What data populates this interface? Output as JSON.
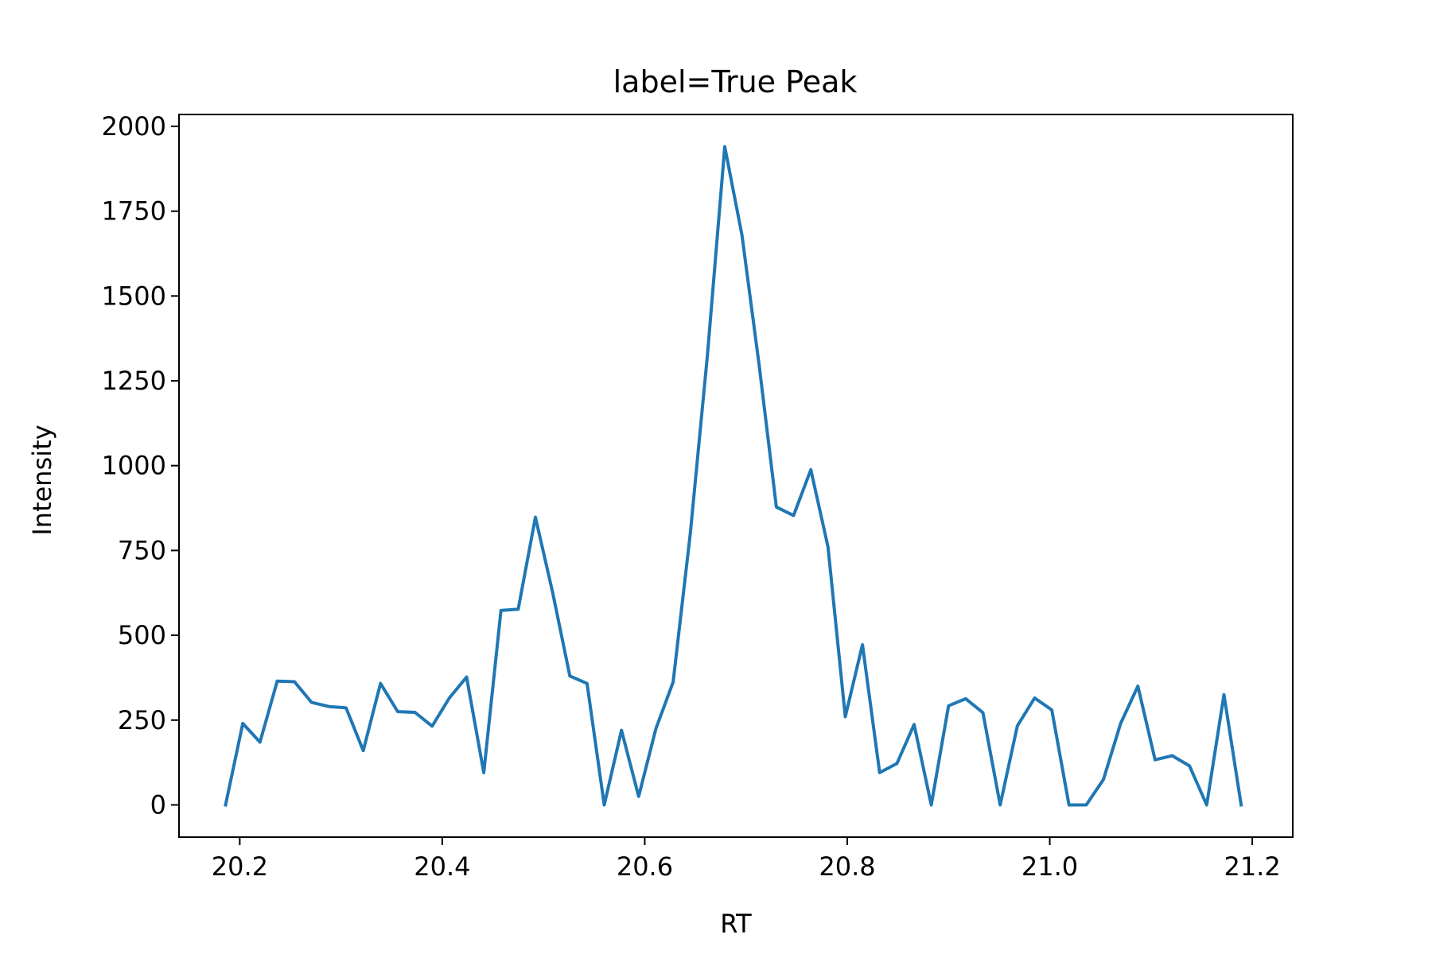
{
  "chart_data": {
    "type": "line",
    "title": "label=True Peak",
    "xlabel": "RT",
    "ylabel": "Intensity",
    "xlim": [
      20.14,
      21.24
    ],
    "ylim": [
      -95,
      2035
    ],
    "xticks": [
      20.2,
      20.4,
      20.6,
      20.8,
      21.0,
      21.2
    ],
    "xtick_labels": [
      "20.2",
      "20.4",
      "20.6",
      "20.8",
      "21.0",
      "21.2"
    ],
    "yticks": [
      0,
      250,
      500,
      750,
      1000,
      1250,
      1500,
      1750,
      2000
    ],
    "ytick_labels": [
      "0",
      "250",
      "500",
      "750",
      "1000",
      "1250",
      "1500",
      "1750",
      "2000"
    ],
    "grid": false,
    "series": [
      {
        "color": "#1f77b4",
        "x": [
          20.186,
          20.203,
          20.22,
          20.237,
          20.254,
          20.271,
          20.288,
          20.305,
          20.322,
          20.339,
          20.356,
          20.373,
          20.39,
          20.407,
          20.424,
          20.441,
          20.458,
          20.475,
          20.492,
          20.509,
          20.526,
          20.543,
          20.56,
          20.577,
          20.594,
          20.611,
          20.628,
          20.645,
          20.662,
          20.679,
          20.696,
          20.713,
          20.73,
          20.747,
          20.764,
          20.781,
          20.798,
          20.815,
          20.832,
          20.849,
          20.866,
          20.883,
          20.9,
          20.917,
          20.934,
          20.951,
          20.968,
          20.985,
          21.002,
          21.019,
          21.036,
          21.053,
          21.07,
          21.087,
          21.104,
          21.121,
          21.138,
          21.155,
          21.172,
          21.189
        ],
        "y": [
          0,
          240,
          185,
          365,
          363,
          302,
          290,
          286,
          160,
          358,
          275,
          273,
          232,
          315,
          377,
          95,
          573,
          577,
          848,
          627,
          380,
          358,
          0,
          220,
          25,
          225,
          362,
          800,
          1330,
          1940,
          1680,
          1295,
          878,
          853,
          988,
          760,
          260,
          472,
          95,
          122,
          237,
          0,
          292,
          313,
          272,
          0,
          233,
          315,
          280,
          0,
          0,
          75,
          240,
          350,
          133,
          145,
          115,
          0,
          325,
          0
        ]
      }
    ]
  }
}
